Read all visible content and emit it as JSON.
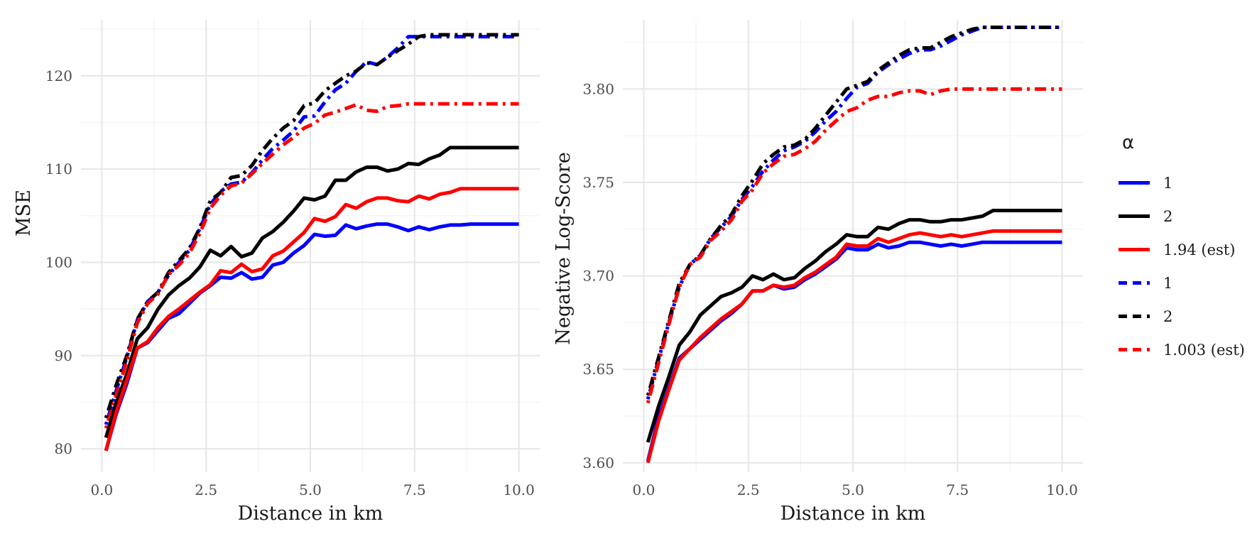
{
  "chart_data": [
    {
      "type": "line",
      "xlabel": "Distance in km",
      "ylabel": "MSE",
      "xlim": [
        -0.5,
        10.5
      ],
      "ylim": [
        77.5,
        126
      ],
      "xticks": [
        0.0,
        2.5,
        5.0,
        7.5,
        10.0
      ],
      "xtick_labels": [
        "0.0",
        "2.5",
        "5.0",
        "7.5",
        "10.0"
      ],
      "yticks": [
        80,
        90,
        100,
        110,
        120
      ],
      "ytick_labels": [
        "80",
        "90",
        "100",
        "110",
        "120"
      ],
      "grid": true,
      "x": [
        0.1,
        0.35,
        0.6,
        0.85,
        1.1,
        1.35,
        1.6,
        1.85,
        2.1,
        2.35,
        2.6,
        2.85,
        3.1,
        3.35,
        3.6,
        3.85,
        4.1,
        4.35,
        4.6,
        4.85,
        5.1,
        5.35,
        5.6,
        5.85,
        6.1,
        6.35,
        6.6,
        6.85,
        7.1,
        7.35,
        7.6,
        7.85,
        8.1,
        8.35,
        8.6,
        8.85,
        9.1,
        9.35,
        9.6,
        9.85,
        10.0
      ],
      "series": [
        {
          "name": "1",
          "linetype": "solid",
          "color": "#0000ff",
          "values": [
            79.8,
            83.8,
            87.0,
            90.8,
            91.4,
            92.7,
            94.0,
            94.5,
            95.6,
            96.7,
            97.5,
            98.4,
            98.3,
            98.9,
            98.2,
            98.4,
            99.7,
            100.0,
            101.0,
            101.8,
            103.0,
            102.8,
            102.9,
            104.0,
            103.6,
            103.9,
            104.1,
            104.1,
            103.8,
            103.4,
            103.8,
            103.5,
            103.8,
            104.0,
            104.0,
            104.1,
            104.1,
            104.1,
            104.1,
            104.1,
            104.1
          ]
        },
        {
          "name": "2",
          "linetype": "solid",
          "color": "#000000",
          "values": [
            81.2,
            85.0,
            88.0,
            91.8,
            93.0,
            95.0,
            96.5,
            97.5,
            98.3,
            99.5,
            101.3,
            100.7,
            101.7,
            100.6,
            101.0,
            102.6,
            103.3,
            104.3,
            105.5,
            106.9,
            106.7,
            107.1,
            108.8,
            108.8,
            109.7,
            110.2,
            110.2,
            109.8,
            110.0,
            110.6,
            110.5,
            111.1,
            111.5,
            112.3,
            112.3,
            112.3,
            112.3,
            112.3,
            112.3,
            112.3,
            112.3
          ]
        },
        {
          "name": "1.94 (est)",
          "linetype": "solid",
          "color": "#ff0000",
          "values": [
            79.8,
            84.0,
            87.4,
            90.8,
            91.5,
            93.0,
            94.2,
            95.0,
            95.9,
            96.8,
            97.6,
            99.1,
            98.9,
            99.8,
            99.0,
            99.3,
            100.7,
            101.2,
            102.2,
            103.2,
            104.7,
            104.4,
            104.9,
            106.2,
            105.8,
            106.5,
            106.9,
            106.9,
            106.6,
            106.5,
            107.1,
            106.8,
            107.3,
            107.5,
            107.9,
            107.9,
            107.9,
            107.9,
            107.9,
            107.9,
            107.9
          ]
        },
        {
          "name": "1",
          "linetype": "dotdash",
          "color": "#0000ff",
          "values": [
            82.6,
            86.3,
            89.8,
            93.8,
            95.8,
            96.8,
            98.6,
            100.0,
            101.3,
            103.6,
            106.2,
            107.6,
            108.4,
            108.6,
            109.6,
            111.0,
            112.2,
            113.1,
            114.1,
            115.6,
            115.7,
            117.2,
            118.5,
            119.2,
            120.5,
            121.5,
            121.2,
            122.0,
            123.0,
            124.2,
            124.2,
            124.2,
            124.2,
            124.2,
            124.2,
            124.2,
            124.2,
            124.2,
            124.2,
            124.2,
            124.2
          ]
        },
        {
          "name": "2",
          "linetype": "dotdash",
          "color": "#000000",
          "values": [
            83.3,
            86.9,
            90.0,
            93.9,
            95.8,
            96.8,
            98.9,
            100.2,
            101.5,
            103.7,
            106.6,
            107.5,
            109.1,
            109.3,
            110.4,
            112.0,
            113.3,
            114.4,
            115.2,
            116.8,
            117.1,
            118.4,
            119.2,
            120.0,
            120.5,
            121.4,
            121.2,
            122.0,
            122.7,
            123.4,
            124.2,
            124.4,
            124.4,
            124.4,
            124.4,
            124.4,
            124.4,
            124.4,
            124.4,
            124.4,
            124.4
          ]
        },
        {
          "name": "1.003 (est)",
          "linetype": "dotdash",
          "color": "#ff0000",
          "values": [
            82.2,
            85.8,
            89.4,
            93.5,
            95.6,
            96.6,
            98.7,
            99.7,
            101.0,
            103.1,
            105.8,
            107.2,
            108.2,
            108.5,
            109.5,
            110.6,
            111.6,
            112.6,
            113.4,
            114.4,
            114.9,
            115.8,
            116.1,
            116.5,
            116.9,
            116.3,
            116.2,
            116.7,
            116.8,
            117.0,
            117.0,
            117.0,
            117.0,
            117.0,
            117.0,
            117.0,
            117.0,
            117.0,
            117.0,
            117.0,
            117.0
          ]
        }
      ]
    },
    {
      "type": "line",
      "xlabel": "Distance in km",
      "ylabel": "Negative Log-Score",
      "xlim": [
        -0.5,
        10.5
      ],
      "ylim": [
        3.595,
        3.837
      ],
      "xticks": [
        0.0,
        2.5,
        5.0,
        7.5,
        10.0
      ],
      "xtick_labels": [
        "0.0",
        "2.5",
        "5.0",
        "7.5",
        "10.0"
      ],
      "yticks": [
        3.6,
        3.65,
        3.7,
        3.75,
        3.8
      ],
      "ytick_labels": [
        "3.60",
        "3.65",
        "3.70",
        "3.75",
        "3.80"
      ],
      "grid": true,
      "x": [
        0.1,
        0.35,
        0.6,
        0.85,
        1.1,
        1.35,
        1.6,
        1.85,
        2.1,
        2.35,
        2.6,
        2.85,
        3.1,
        3.35,
        3.6,
        3.85,
        4.1,
        4.35,
        4.6,
        4.85,
        5.1,
        5.35,
        5.6,
        5.85,
        6.1,
        6.35,
        6.6,
        6.85,
        7.1,
        7.35,
        7.6,
        7.85,
        8.1,
        8.35,
        8.6,
        8.85,
        9.1,
        9.35,
        9.6,
        9.85,
        10.0
      ],
      "series": [
        {
          "name": "1",
          "linetype": "solid",
          "color": "#0000ff",
          "values": [
            3.601,
            3.624,
            3.64,
            3.656,
            3.661,
            3.666,
            3.671,
            3.676,
            3.68,
            3.685,
            3.692,
            3.692,
            3.695,
            3.693,
            3.694,
            3.698,
            3.701,
            3.705,
            3.709,
            3.715,
            3.714,
            3.714,
            3.717,
            3.715,
            3.716,
            3.718,
            3.718,
            3.717,
            3.716,
            3.717,
            3.716,
            3.717,
            3.718,
            3.718,
            3.718,
            3.718,
            3.718,
            3.718,
            3.718,
            3.718,
            3.718
          ]
        },
        {
          "name": "2",
          "linetype": "solid",
          "color": "#000000",
          "values": [
            3.611,
            3.63,
            3.646,
            3.663,
            3.67,
            3.679,
            3.684,
            3.689,
            3.691,
            3.694,
            3.7,
            3.698,
            3.701,
            3.698,
            3.699,
            3.704,
            3.708,
            3.713,
            3.717,
            3.722,
            3.721,
            3.721,
            3.726,
            3.725,
            3.728,
            3.73,
            3.73,
            3.729,
            3.729,
            3.73,
            3.73,
            3.731,
            3.732,
            3.735,
            3.735,
            3.735,
            3.735,
            3.735,
            3.735,
            3.735,
            3.735
          ]
        },
        {
          "name": "1.94 (est)",
          "linetype": "solid",
          "color": "#ff0000",
          "values": [
            3.6,
            3.622,
            3.639,
            3.655,
            3.661,
            3.667,
            3.672,
            3.677,
            3.681,
            3.685,
            3.692,
            3.692,
            3.695,
            3.694,
            3.695,
            3.699,
            3.702,
            3.706,
            3.71,
            3.717,
            3.716,
            3.716,
            3.72,
            3.718,
            3.72,
            3.722,
            3.723,
            3.722,
            3.721,
            3.722,
            3.721,
            3.722,
            3.723,
            3.724,
            3.724,
            3.724,
            3.724,
            3.724,
            3.724,
            3.724,
            3.724
          ]
        },
        {
          "name": "1",
          "linetype": "dotdash",
          "color": "#0000ff",
          "values": [
            3.634,
            3.655,
            3.675,
            3.694,
            3.706,
            3.711,
            3.72,
            3.726,
            3.732,
            3.741,
            3.748,
            3.756,
            3.762,
            3.767,
            3.769,
            3.772,
            3.777,
            3.783,
            3.788,
            3.795,
            3.801,
            3.803,
            3.809,
            3.813,
            3.816,
            3.819,
            3.821,
            3.821,
            3.823,
            3.826,
            3.829,
            3.831,
            3.833,
            3.833,
            3.833,
            3.833,
            3.833,
            3.833,
            3.833,
            3.833,
            3.833
          ]
        },
        {
          "name": "2",
          "linetype": "dotdash",
          "color": "#000000",
          "values": [
            3.636,
            3.656,
            3.676,
            3.696,
            3.706,
            3.711,
            3.72,
            3.727,
            3.733,
            3.743,
            3.751,
            3.76,
            3.765,
            3.769,
            3.77,
            3.773,
            3.779,
            3.786,
            3.793,
            3.8,
            3.802,
            3.804,
            3.81,
            3.814,
            3.818,
            3.821,
            3.822,
            3.822,
            3.825,
            3.828,
            3.83,
            3.832,
            3.833,
            3.833,
            3.833,
            3.833,
            3.833,
            3.833,
            3.833,
            3.833,
            3.833
          ]
        },
        {
          "name": "1.003 (est)",
          "linetype": "dotdash",
          "color": "#ff0000",
          "values": [
            3.632,
            3.653,
            3.674,
            3.694,
            3.706,
            3.71,
            3.719,
            3.724,
            3.73,
            3.74,
            3.746,
            3.755,
            3.76,
            3.764,
            3.765,
            3.768,
            3.772,
            3.778,
            3.783,
            3.788,
            3.79,
            3.794,
            3.796,
            3.796,
            3.798,
            3.799,
            3.799,
            3.797,
            3.799,
            3.8,
            3.8,
            3.8,
            3.8,
            3.8,
            3.8,
            3.8,
            3.8,
            3.8,
            3.8,
            3.8,
            3.8
          ]
        }
      ]
    }
  ],
  "legend": {
    "title": "α",
    "items": [
      {
        "label": "1",
        "color": "#0000ff",
        "linetype": "solid"
      },
      {
        "label": "2",
        "color": "#000000",
        "linetype": "solid"
      },
      {
        "label": "1.94 (est)",
        "color": "#ff0000",
        "linetype": "solid"
      },
      {
        "label": "1",
        "color": "#0000ff",
        "linetype": "dotdash"
      },
      {
        "label": "2",
        "color": "#000000",
        "linetype": "dotdash"
      },
      {
        "label": "1.003 (est)",
        "color": "#ff0000",
        "linetype": "dotdash"
      }
    ]
  }
}
